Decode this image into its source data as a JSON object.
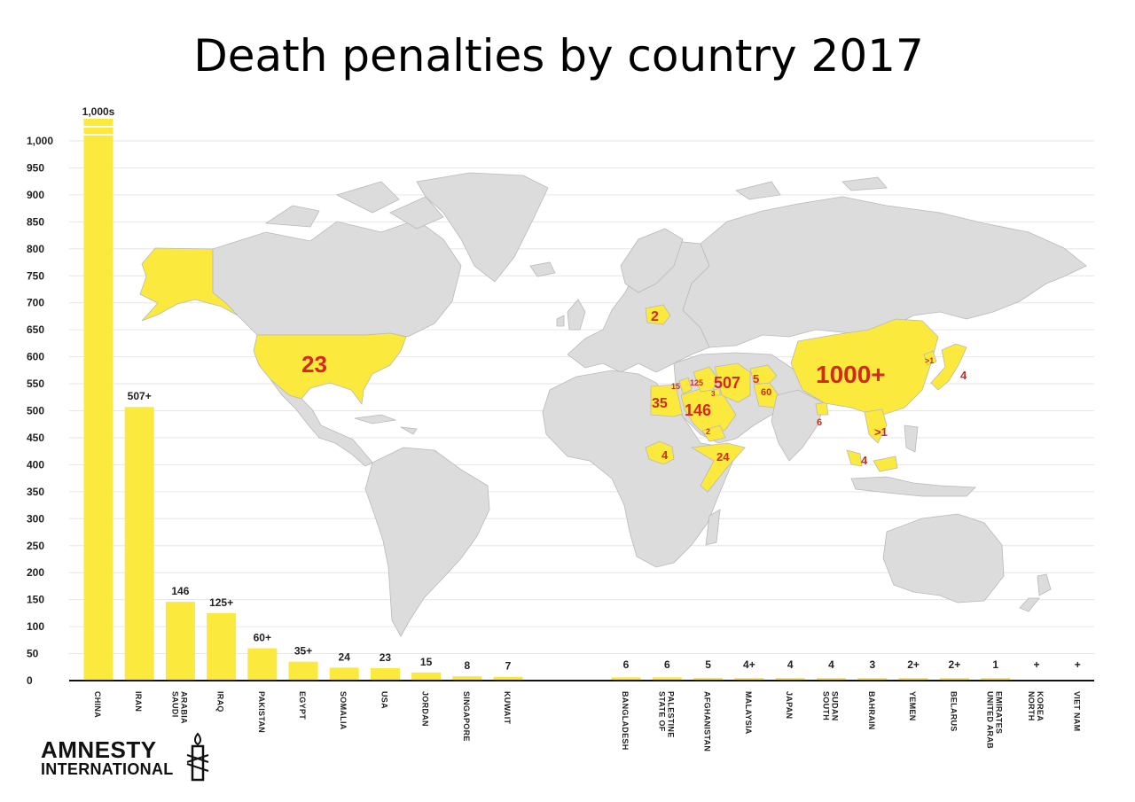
{
  "title": "Death penalties by country 2017",
  "logo": {
    "line1": "AMNESTY",
    "line2": "INTERNATIONAL"
  },
  "colors": {
    "bar": "#fbe93d",
    "map_land": "#dcdcdc",
    "map_highlight": "#fbe93d",
    "map_label": "#d42a1e",
    "grid": "#e6e6e6"
  },
  "chart_data": {
    "type": "bar",
    "title": "Death penalties by country 2017",
    "ylim": [
      0,
      1000
    ],
    "yticks": [
      0,
      50,
      100,
      150,
      200,
      250,
      300,
      350,
      400,
      450,
      500,
      550,
      600,
      650,
      700,
      750,
      800,
      850,
      900,
      950,
      "1,000"
    ],
    "grid": true,
    "categories": [
      [
        "CHINA"
      ],
      [
        "IRAN"
      ],
      [
        "SAUDI",
        "ARABIA"
      ],
      [
        "IRAQ"
      ],
      [
        "PAKISTAN"
      ],
      [
        "EGYPT"
      ],
      [
        "SOMALIA"
      ],
      [
        "USA"
      ],
      [
        "JORDAN"
      ],
      [
        "SINGAPORE"
      ],
      [
        "KUWAIT"
      ],
      [
        "BANGLADESH"
      ],
      [
        "STATE OF",
        "PALESTINE"
      ],
      [
        "AFGHANISTAN"
      ],
      [
        "MALAYSIA"
      ],
      [
        "JAPAN"
      ],
      [
        "SOUTH",
        "SUDAN"
      ],
      [
        "BAHRAIN"
      ],
      [
        "YEMEN"
      ],
      [
        "BELARUS"
      ],
      [
        "UNITED ARAB",
        "EMIRATES"
      ],
      [
        "NORTH",
        "KOREA"
      ],
      [
        "VIET NAM"
      ]
    ],
    "values": [
      1000,
      507,
      146,
      125,
      60,
      35,
      24,
      23,
      15,
      8,
      7,
      6,
      6,
      5,
      4,
      4,
      4,
      3,
      2,
      2,
      1,
      0,
      0
    ],
    "value_labels": [
      "1,000s",
      "507+",
      "146",
      "125+",
      "60+",
      "35+",
      "24",
      "23",
      "15",
      "8",
      "7",
      "6",
      "6",
      "5",
      "4+",
      "4",
      "4",
      "3",
      "2+",
      "2+",
      "1",
      "+",
      "+"
    ],
    "map_labels": [
      "23",
      "2",
      "35",
      "15",
      "125",
      "3",
      "507",
      "5",
      "60",
      "146",
      "2",
      "1000+",
      ">1",
      "4",
      "6",
      ">1",
      "4",
      "4",
      "24"
    ]
  }
}
